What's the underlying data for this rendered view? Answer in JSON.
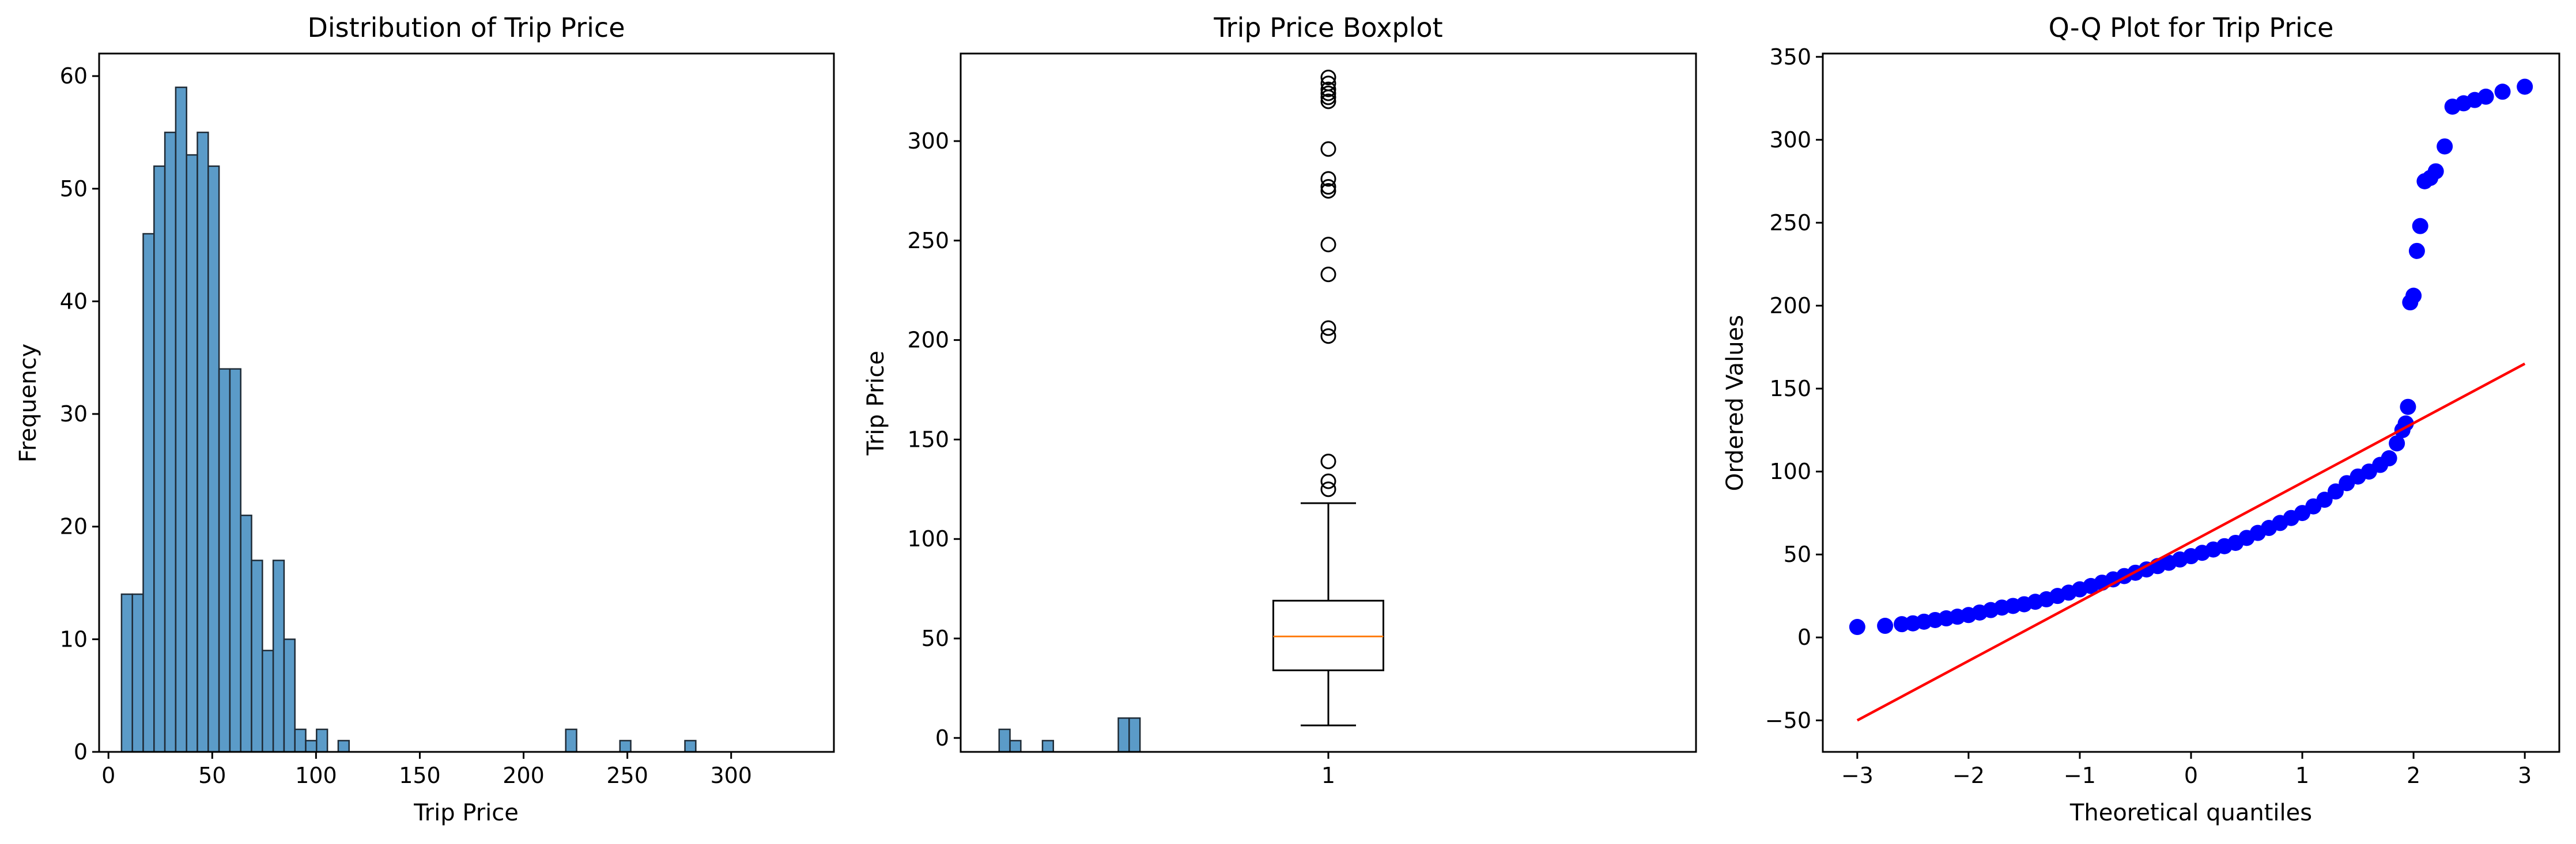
{
  "chart_data": [
    {
      "type": "bar",
      "title": "Distribution of Trip Price",
      "xlabel": "Trip Price",
      "ylabel": "Frequency",
      "xlim": [
        -4.5,
        349.5
      ],
      "ylim": [
        0,
        62
      ],
      "xticks": [
        0,
        50,
        100,
        150,
        200,
        250,
        300
      ],
      "yticks": [
        0,
        10,
        20,
        30,
        40,
        50,
        60
      ],
      "bin_start": 6.3,
      "bin_width": 5.22,
      "values": [
        14,
        14,
        46,
        52,
        55,
        59,
        53,
        55,
        52,
        34,
        34,
        21,
        17,
        9,
        17,
        10,
        2,
        1,
        2,
        0,
        1,
        0,
        0,
        0,
        0,
        0,
        0,
        0,
        0,
        0,
        0,
        0,
        0,
        0,
        0,
        0,
        0,
        0,
        0,
        0,
        0,
        2,
        0,
        0,
        0,
        0,
        1,
        0,
        0,
        0,
        0,
        0,
        1,
        0,
        0,
        0,
        0,
        0,
        0,
        0,
        0,
        0,
        0,
        0,
        0,
        0,
        0,
        0,
        0,
        0,
        0,
        0,
        0,
        0,
        0,
        0,
        0,
        0,
        0,
        0,
        0,
        2,
        1,
        0,
        0,
        1,
        0,
        0,
        0,
        0,
        0,
        0,
        3,
        3
      ]
    },
    {
      "type": "box",
      "title": "Trip Price Boxplot",
      "ylabel": "Trip Price",
      "xticks": [
        "1"
      ],
      "ylim": [
        -7,
        344
      ],
      "yticks": [
        0,
        50,
        100,
        150,
        200,
        250,
        300
      ],
      "whisker_low": 6.3,
      "q1": 34,
      "median": 51,
      "q3": 69,
      "whisker_high": 118,
      "outliers": [
        125,
        129,
        139,
        202,
        206,
        233,
        248,
        275,
        277,
        281,
        296,
        320,
        322,
        324,
        326,
        329,
        332
      ],
      "median_color": "#ff7f0e"
    },
    {
      "type": "scatter",
      "title": "Q-Q Plot for Trip Price",
      "xlabel": "Theoretical quantiles",
      "ylabel": "Ordered Values",
      "xlim": [
        -3.31,
        3.31
      ],
      "ylim": [
        -69,
        352
      ],
      "xticks": [
        -3,
        -2,
        -1,
        0,
        1,
        2,
        3
      ],
      "yticks": [
        -50,
        0,
        50,
        100,
        150,
        200,
        250,
        300,
        350
      ],
      "fit_line": {
        "x": [
          -3.0,
          3.0
        ],
        "y": [
          -50,
          165
        ],
        "color": "#ff0000"
      },
      "point_color": "#0000ff",
      "points": [
        [
          -3.0,
          6.3
        ],
        [
          -2.75,
          7
        ],
        [
          -2.6,
          8
        ],
        [
          -2.5,
          8.5
        ],
        [
          -2.4,
          9.5
        ],
        [
          -2.3,
          10.5
        ],
        [
          -2.2,
          11.5
        ],
        [
          -2.1,
          12.5
        ],
        [
          -2.0,
          13.5
        ],
        [
          -1.9,
          15
        ],
        [
          -1.8,
          16.5
        ],
        [
          -1.7,
          18
        ],
        [
          -1.6,
          19
        ],
        [
          -1.5,
          20
        ],
        [
          -1.4,
          21.5
        ],
        [
          -1.3,
          23
        ],
        [
          -1.2,
          25
        ],
        [
          -1.1,
          27
        ],
        [
          -1.0,
          29
        ],
        [
          -0.9,
          31
        ],
        [
          -0.8,
          33
        ],
        [
          -0.7,
          35
        ],
        [
          -0.6,
          37
        ],
        [
          -0.5,
          39
        ],
        [
          -0.4,
          41
        ],
        [
          -0.3,
          43
        ],
        [
          -0.2,
          45
        ],
        [
          -0.1,
          47
        ],
        [
          0.0,
          49
        ],
        [
          0.1,
          51
        ],
        [
          0.2,
          53
        ],
        [
          0.3,
          55
        ],
        [
          0.4,
          57
        ],
        [
          0.5,
          60
        ],
        [
          0.6,
          63
        ],
        [
          0.7,
          66
        ],
        [
          0.8,
          69
        ],
        [
          0.9,
          72
        ],
        [
          1.0,
          75
        ],
        [
          1.1,
          79
        ],
        [
          1.2,
          83
        ],
        [
          1.3,
          88
        ],
        [
          1.4,
          93
        ],
        [
          1.5,
          97
        ],
        [
          1.6,
          100
        ],
        [
          1.7,
          104
        ],
        [
          1.78,
          108
        ],
        [
          1.85,
          117
        ],
        [
          1.9,
          125
        ],
        [
          1.93,
          129
        ],
        [
          1.95,
          139
        ],
        [
          1.97,
          202
        ],
        [
          2.0,
          206
        ],
        [
          2.03,
          233
        ],
        [
          2.06,
          248
        ],
        [
          2.1,
          275
        ],
        [
          2.15,
          277
        ],
        [
          2.2,
          281
        ],
        [
          2.28,
          296
        ],
        [
          2.35,
          320
        ],
        [
          2.45,
          322
        ],
        [
          2.55,
          324
        ],
        [
          2.65,
          326
        ],
        [
          2.8,
          329
        ],
        [
          3.0,
          332
        ]
      ]
    }
  ],
  "colors": {
    "hist_fill": "#5b9bc8",
    "hist_edge": "#1f2b36",
    "axes": "#000000"
  }
}
